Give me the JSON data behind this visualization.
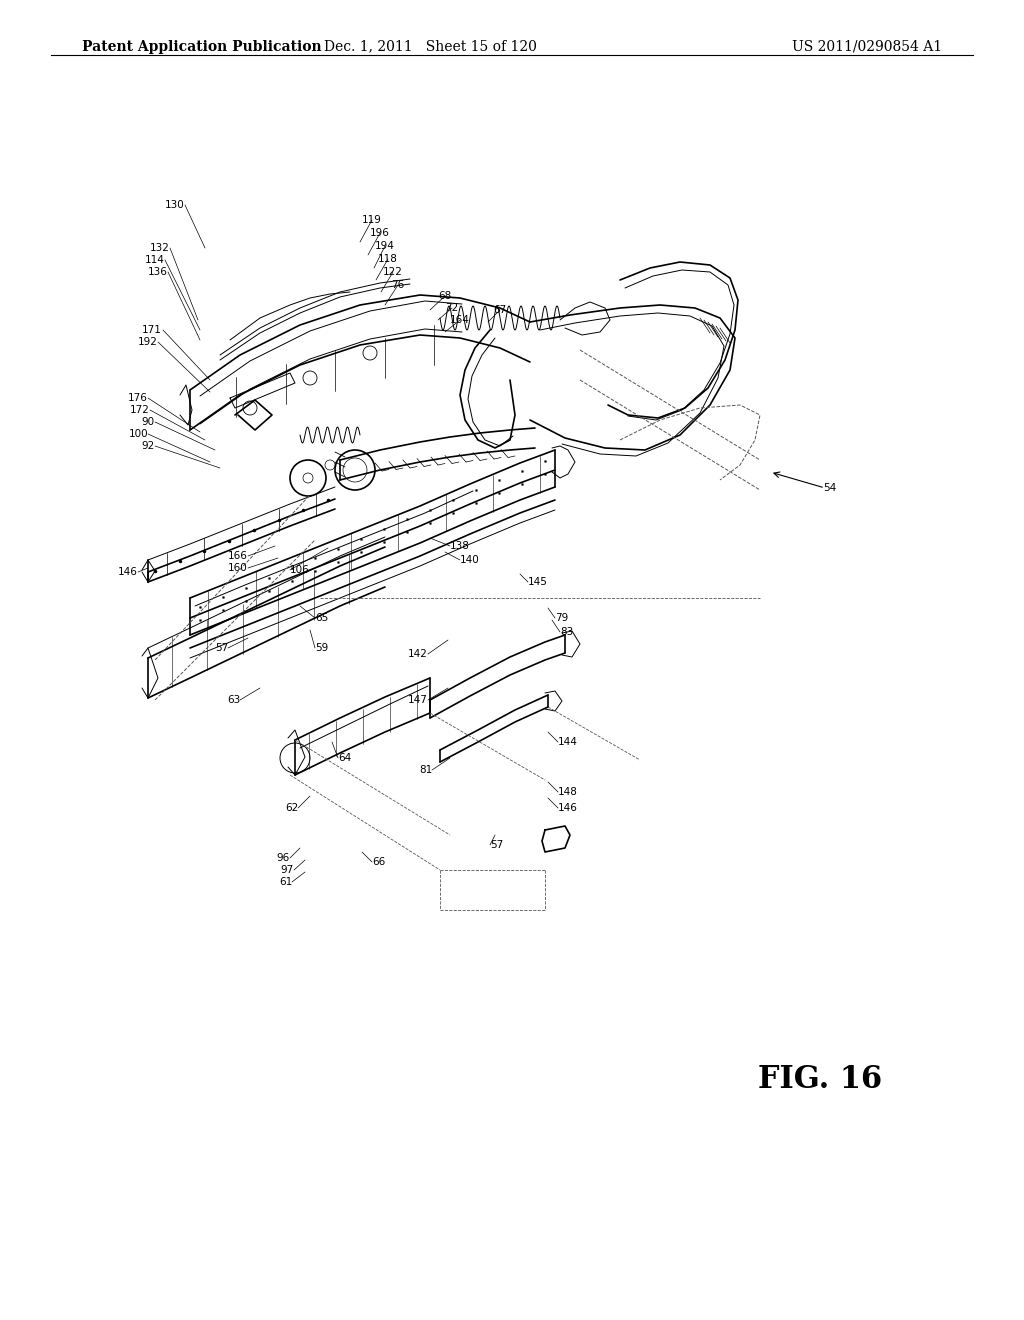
{
  "background_color": "#ffffff",
  "header_left": "Patent Application Publication",
  "header_center": "Dec. 1, 2011   Sheet 15 of 120",
  "header_right": "US 2011/0290854 A1",
  "figure_label": "FIG. 16",
  "header_fontsize": 10,
  "fig_label_fontsize": 22
}
